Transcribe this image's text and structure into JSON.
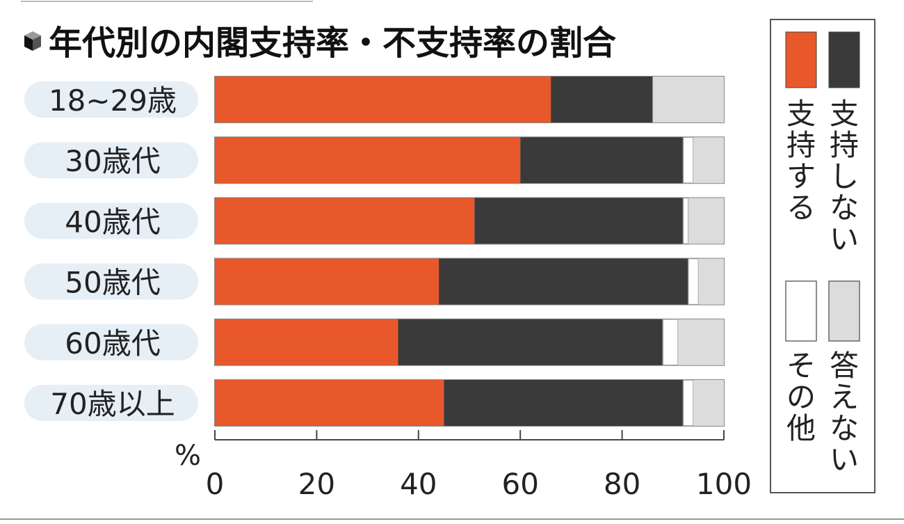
{
  "chart_data": {
    "type": "bar",
    "orientation": "horizontal",
    "stacked": true,
    "title": "年代別の内閣支持率・不支持率の割合",
    "unit_label": "%",
    "categories": [
      "18~29歳",
      "30歳代",
      "40歳代",
      "50歳代",
      "60歳代",
      "70歳以上"
    ],
    "series": [
      {
        "name": "支持する",
        "color": "#e8582a",
        "values": [
          66,
          60,
          51,
          44,
          36,
          45
        ]
      },
      {
        "name": "支持しない",
        "color": "#3a3a3a",
        "values": [
          20,
          32,
          41,
          49,
          52,
          47
        ]
      },
      {
        "name": "その他",
        "color": "#ffffff",
        "values": [
          0,
          2,
          1,
          2,
          3,
          2
        ]
      },
      {
        "name": "答えない",
        "color": "#dcdcdc",
        "values": [
          14,
          6,
          7,
          5,
          9,
          6
        ]
      }
    ],
    "x_ticks": [
      "0",
      "20",
      "40",
      "60",
      "80",
      "100"
    ],
    "xlim": [
      0,
      100
    ],
    "legend_placement": "right",
    "grid": false
  }
}
